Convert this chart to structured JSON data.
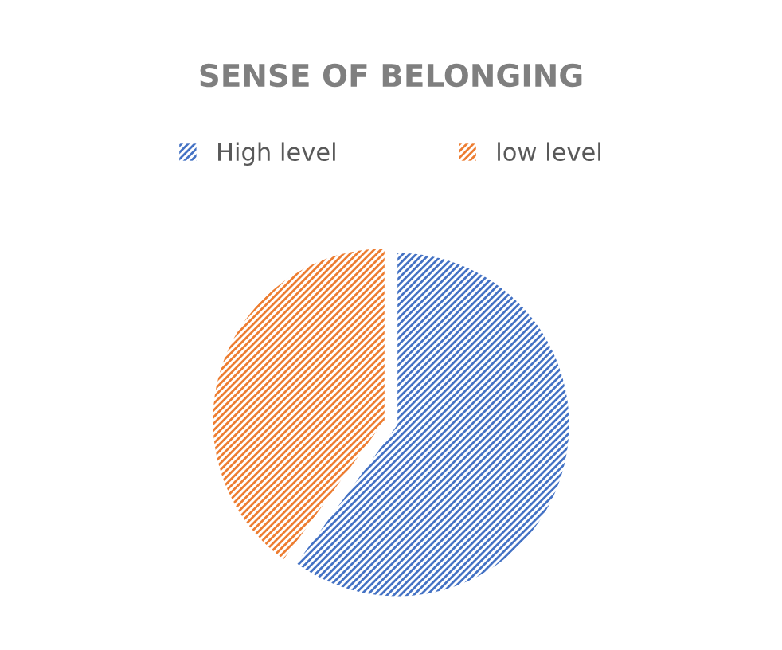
{
  "chart_data": {
    "type": "pie",
    "title": "SENSE OF BELONGING",
    "categories": [
      "High level",
      "low level"
    ],
    "values": [
      60,
      40
    ],
    "colors": [
      "#4472c4",
      "#ed7d31"
    ],
    "legend": "top"
  }
}
